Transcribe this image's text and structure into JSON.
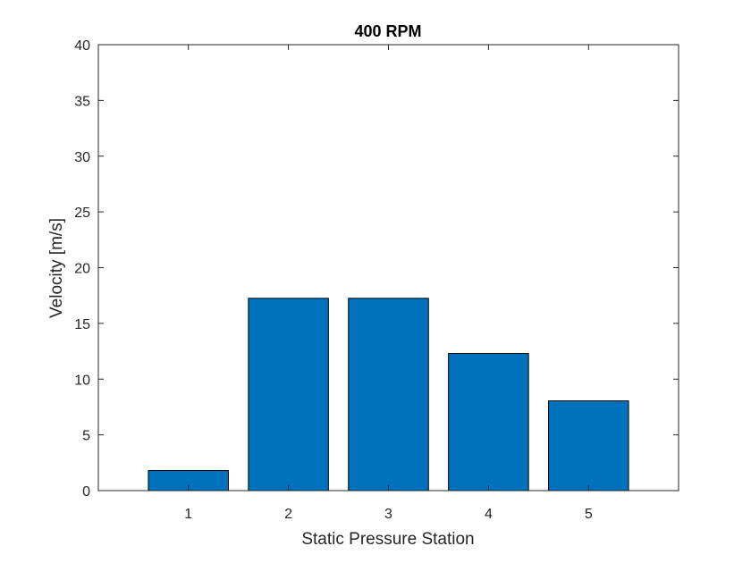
{
  "chart_data": {
    "type": "bar",
    "title": "400 RPM",
    "xlabel": "Static Pressure Station",
    "ylabel": "Velocity [m/s]",
    "categories": [
      "1",
      "2",
      "3",
      "4",
      "5"
    ],
    "values": [
      1.8,
      17.25,
      17.25,
      12.3,
      8.05
    ],
    "ylim": [
      0,
      40
    ],
    "xlim": [
      0.1,
      5.9
    ],
    "yticks": [
      0,
      5,
      10,
      15,
      20,
      25,
      30,
      35,
      40
    ],
    "yticklabels": [
      "0",
      "5",
      "10",
      "15",
      "20",
      "25",
      "30",
      "35",
      "40"
    ],
    "grid": false,
    "bar_color": "#0072BD",
    "edge_color": "#000000"
  }
}
